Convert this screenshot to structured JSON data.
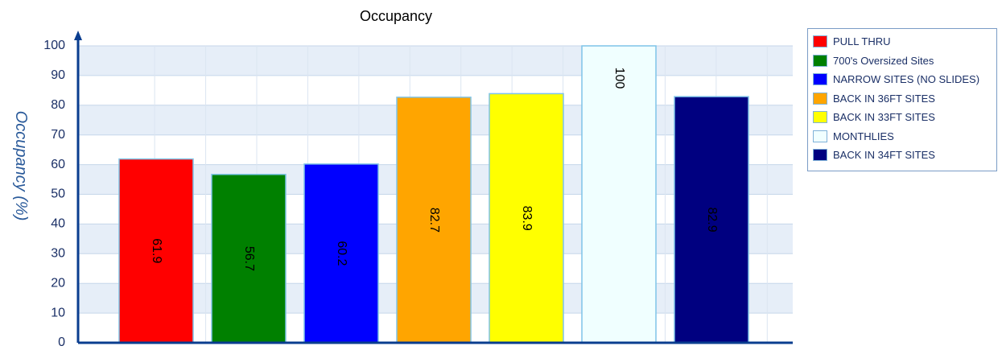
{
  "chart_data": {
    "type": "bar",
    "title": "Occupancy",
    "xlabel": "",
    "ylabel": "Occupancy (%)",
    "ylim": [
      0,
      100
    ],
    "yticks": [
      0,
      10,
      20,
      30,
      40,
      50,
      60,
      70,
      80,
      90,
      100
    ],
    "ytick_labels": [
      "0",
      "10",
      "20",
      "30",
      "40",
      "50",
      "60",
      "70",
      "80",
      "90",
      "100"
    ],
    "grid": true,
    "legend_position": "right",
    "categories": [
      "PULL THRU",
      "700's Oversized Sites",
      "NARROW SITES (NO SLIDES)",
      "BACK IN 36FT SITES",
      "BACK IN 33FT SITES",
      "MONTHLIES",
      "BACK IN 34FT SITES"
    ],
    "values": [
      61.9,
      56.7,
      60.2,
      82.7,
      83.9,
      100,
      82.9
    ],
    "value_labels": [
      "61.9",
      "56.7",
      "60.2",
      "82.7",
      "83.9",
      "100",
      "82.9"
    ],
    "colors": [
      "#ff0000",
      "#008000",
      "#0000ff",
      "#ffa500",
      "#ffff00",
      "#f0ffff",
      "#000080"
    ]
  }
}
